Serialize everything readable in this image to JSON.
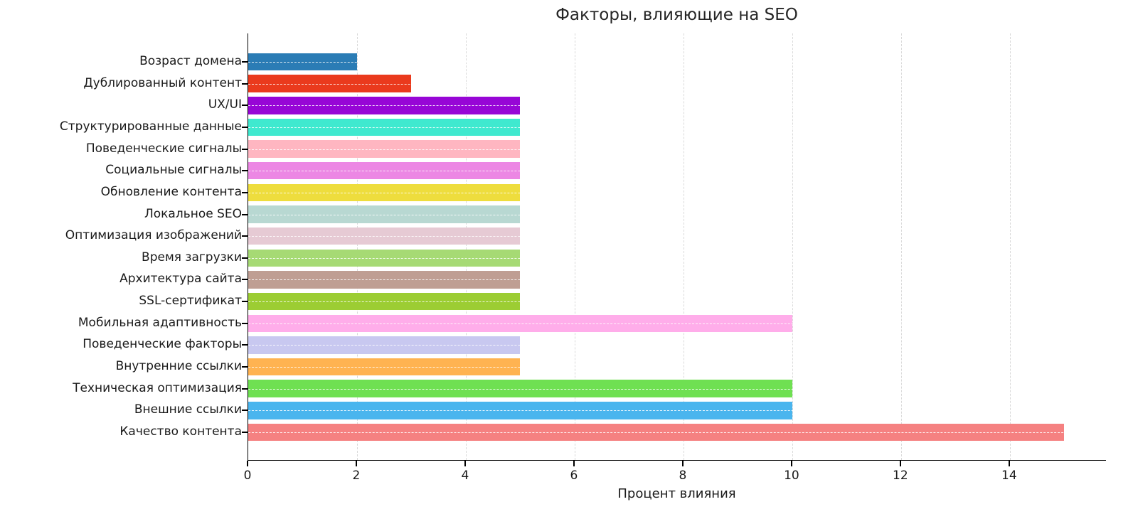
{
  "chart_data": {
    "type": "bar",
    "orientation": "horizontal",
    "title": "Факторы, влияющие на SEO",
    "xlabel": "Процент влияния",
    "ylabel": "",
    "xlim": [
      0,
      15.78
    ],
    "xticks": [
      0,
      2,
      4,
      6,
      8,
      10,
      12,
      14
    ],
    "grid": true,
    "grid_style": "dashed",
    "axis_color": "#000000",
    "background": "#ffffff",
    "categories": [
      "Возраст домена",
      "Дублированный контент",
      "UX/UI",
      "Структурированные данные",
      "Поведенческие сигналы",
      "Социальные сигналы",
      "Обновление контента",
      "Локальное SEO",
      "Оптимизация изображений",
      "Время загрузки",
      "Архитектура сайта",
      "SSL-сертификат",
      "Мобильная адаптивность",
      "Поведенческие факторы",
      "Внутренние ссылки",
      "Техническая оптимизация",
      "Внешние ссылки",
      "Качество контента"
    ],
    "values": [
      2,
      3,
      5,
      5,
      5,
      5,
      5,
      5,
      5,
      5,
      5,
      5,
      10,
      5,
      5,
      10,
      10,
      15
    ],
    "colors": [
      "#2b7cb5",
      "#ea3a1d",
      "#9706d6",
      "#3fe9cf",
      "#ffb6c1",
      "#ec87e4",
      "#eedd3d",
      "#b8d8d2",
      "#e6cad4",
      "#a6da74",
      "#bf9e93",
      "#9ccd33",
      "#ffadea",
      "#c8c8f0",
      "#ffb351",
      "#6fe052",
      "#4ab5ee",
      "#f58181"
    ]
  }
}
